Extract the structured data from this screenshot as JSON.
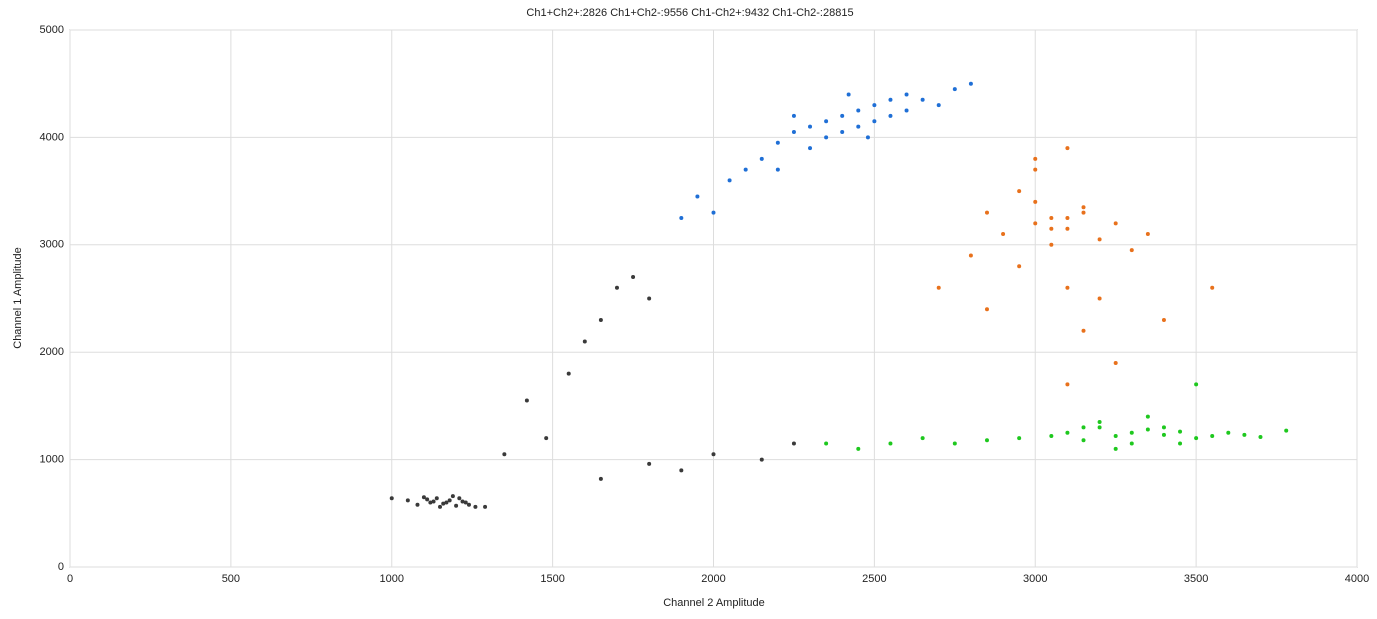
{
  "chart_data": {
    "type": "scatter",
    "title": "Ch1+Ch2+:2826  Ch1+Ch2-:9556  Ch1-Ch2+:9432  Ch1-Ch2-:28815",
    "x_label": "Channel 2 Amplitude",
    "y_label": "Channel 1 Amplitude",
    "xlim": [
      0,
      4000
    ],
    "xticks": [
      0,
      500,
      1000,
      1500,
      2000,
      2500,
      3000,
      3500,
      4000
    ],
    "ylim": [
      0,
      5000
    ],
    "yticks": [
      0,
      1000,
      2000,
      3000,
      4000,
      5000
    ],
    "grid": true,
    "series": [
      {
        "color": "#3a3a3a",
        "x": [
          1050,
          1080,
          1100,
          1120,
          1140,
          1160,
          1180,
          1200,
          1220,
          1240,
          1260,
          1110,
          1150,
          1190,
          1230,
          1130,
          1170,
          1210,
          1000,
          1290,
          1350,
          1420,
          1480,
          1550,
          1600,
          1650,
          1700,
          1750,
          1800,
          1900,
          1650,
          1800,
          2000,
          2150,
          2250
        ],
        "y": [
          620,
          580,
          650,
          600,
          640,
          590,
          620,
          570,
          610,
          580,
          560,
          630,
          560,
          660,
          600,
          610,
          600,
          640,
          640,
          560,
          1050,
          1550,
          1200,
          1800,
          2100,
          2300,
          2600,
          2700,
          2500,
          900,
          820,
          960,
          1050,
          1000,
          1150
        ]
      },
      {
        "color": "#1f6fd6",
        "x": [
          1900,
          1950,
          2000,
          2050,
          2100,
          2150,
          2200,
          2250,
          2300,
          2350,
          2400,
          2450,
          2500,
          2550,
          2600,
          2650,
          2700,
          2750,
          2800,
          2300,
          2350,
          2400,
          2450,
          2500,
          2550,
          2600,
          2200,
          2250,
          2480,
          2420
        ],
        "y": [
          3250,
          3450,
          3300,
          3600,
          3700,
          3800,
          3950,
          4050,
          4100,
          4150,
          4200,
          4250,
          4300,
          4350,
          4400,
          4350,
          4300,
          4450,
          4500,
          3900,
          4000,
          4050,
          4100,
          4150,
          4200,
          4250,
          3700,
          4200,
          4000,
          4400
        ]
      },
      {
        "color": "#e8711c",
        "x": [
          2800,
          2850,
          2900,
          2950,
          3000,
          3050,
          3100,
          3150,
          3200,
          3250,
          3300,
          3350,
          3000,
          3050,
          3100,
          3150,
          2950,
          3100,
          3050,
          3200,
          3000,
          3100,
          3150,
          2700,
          2850,
          3400,
          3550,
          3250,
          3100,
          3000
        ],
        "y": [
          2900,
          3300,
          3100,
          3500,
          3200,
          3250,
          3150,
          3300,
          3050,
          3200,
          2950,
          3100,
          3400,
          3150,
          3250,
          3350,
          2800,
          2600,
          3000,
          2500,
          3700,
          3900,
          2200,
          2600,
          2400,
          2300,
          2600,
          1900,
          1700,
          3800
        ]
      },
      {
        "color": "#1ec81e",
        "x": [
          2350,
          2450,
          2550,
          2650,
          2750,
          2850,
          2950,
          3050,
          3100,
          3150,
          3200,
          3250,
          3300,
          3350,
          3400,
          3450,
          3500,
          3550,
          3600,
          3650,
          3700,
          3200,
          3300,
          3400,
          3250,
          3350,
          3150,
          3450,
          3500,
          3780
        ],
        "y": [
          1150,
          1100,
          1150,
          1200,
          1150,
          1180,
          1200,
          1220,
          1250,
          1180,
          1300,
          1220,
          1250,
          1280,
          1230,
          1260,
          1200,
          1220,
          1250,
          1230,
          1210,
          1350,
          1150,
          1300,
          1100,
          1400,
          1300,
          1150,
          1700,
          1270
        ]
      }
    ]
  }
}
